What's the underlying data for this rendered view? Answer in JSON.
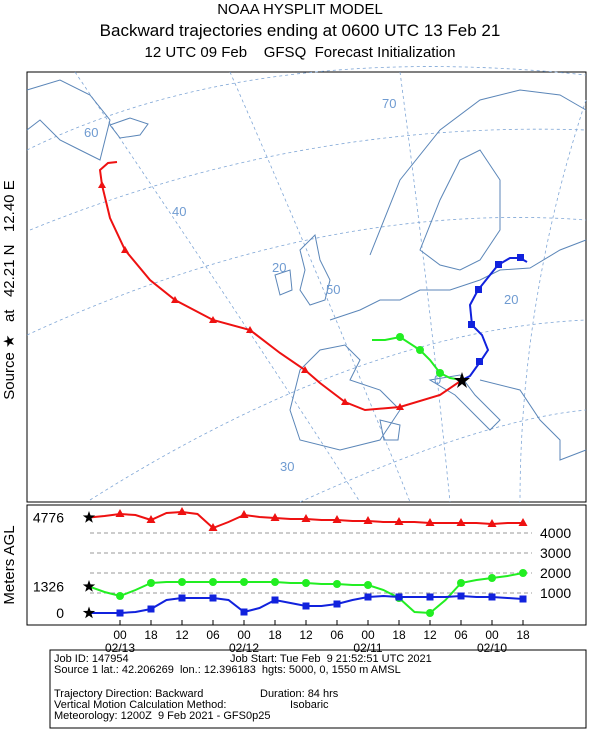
{
  "header": {
    "line1": "NOAA HYSPLIT MODEL",
    "line2": "Backward trajectories ending at 0600 UTC 13 Feb 21",
    "line3": "12 UTC 09 Feb    GFSQ  Forecast Initialization"
  },
  "map": {
    "side_label": "Source ★   at   42.21 N   12.40 E",
    "grid_labels": [
      "70",
      "60",
      "40",
      "20",
      "50",
      "20",
      "0",
      "30"
    ]
  },
  "chart_data": {
    "type": "line",
    "ylabel": "Meters AGL",
    "categories": [
      null,
      null,
      "00",
      null,
      "18",
      null,
      "12",
      null,
      "06",
      null,
      "00",
      null,
      "18",
      null,
      "12",
      null,
      "06",
      null,
      "00",
      null,
      "18",
      null,
      "12",
      null,
      "06",
      null,
      "00",
      null,
      "18"
    ],
    "date_categories": [
      null,
      null,
      "02/13",
      null,
      null,
      null,
      null,
      null,
      null,
      null,
      "02/12",
      null,
      null,
      null,
      null,
      null,
      null,
      null,
      "02/11",
      null,
      null,
      null,
      null,
      null,
      null,
      null,
      "02/10",
      null,
      null
    ],
    "ylim": [
      -600,
      5400
    ],
    "yticks": [
      1000,
      2000,
      3000,
      4000
    ],
    "grid": true,
    "series": [
      {
        "color": "#ee1111",
        "marker": "triangle",
        "values": [
          4776,
          4850,
          4950,
          4900,
          4650,
          5000,
          5050,
          4950,
          4250,
          4550,
          4900,
          4800,
          4750,
          4700,
          4700,
          4650,
          4650,
          4600,
          4600,
          4550,
          4550,
          4550,
          4500,
          4500,
          4500,
          4500,
          4450,
          4500,
          4500
        ]
      },
      {
        "color": "#22ee22",
        "marker": "circle",
        "values": [
          1326,
          1050,
          850,
          1150,
          1500,
          1550,
          1550,
          1550,
          1550,
          1550,
          1550,
          1550,
          1550,
          1500,
          1500,
          1450,
          1450,
          1400,
          1400,
          1150,
          750,
          50,
          0,
          650,
          1500,
          1650,
          1750,
          1850,
          2000
        ]
      },
      {
        "color": "#1122dd",
        "marker": "square",
        "values": [
          0,
          0,
          0,
          50,
          200,
          650,
          750,
          750,
          750,
          650,
          50,
          250,
          650,
          500,
          350,
          350,
          450,
          650,
          800,
          850,
          800,
          800,
          800,
          800,
          850,
          800,
          800,
          750,
          700
        ]
      }
    ]
  },
  "footer": {
    "job_id": "Job ID: 147954",
    "job_start": "Job Start: Tue Feb  9 21:52:51 UTC 2021",
    "source": "Source 1 lat.: 42.206269  lon.: 12.396183  hgts: 5000, 0, 1550 m AMSL",
    "direction": "Trajectory Direction: Backward",
    "duration": "Duration: 84 hrs",
    "vertical": "Vertical Motion Calculation Method:",
    "method": "Isobaric",
    "meteorology": "Meteorology: 1200Z  9 Feb 2021 - GFS0p25"
  }
}
